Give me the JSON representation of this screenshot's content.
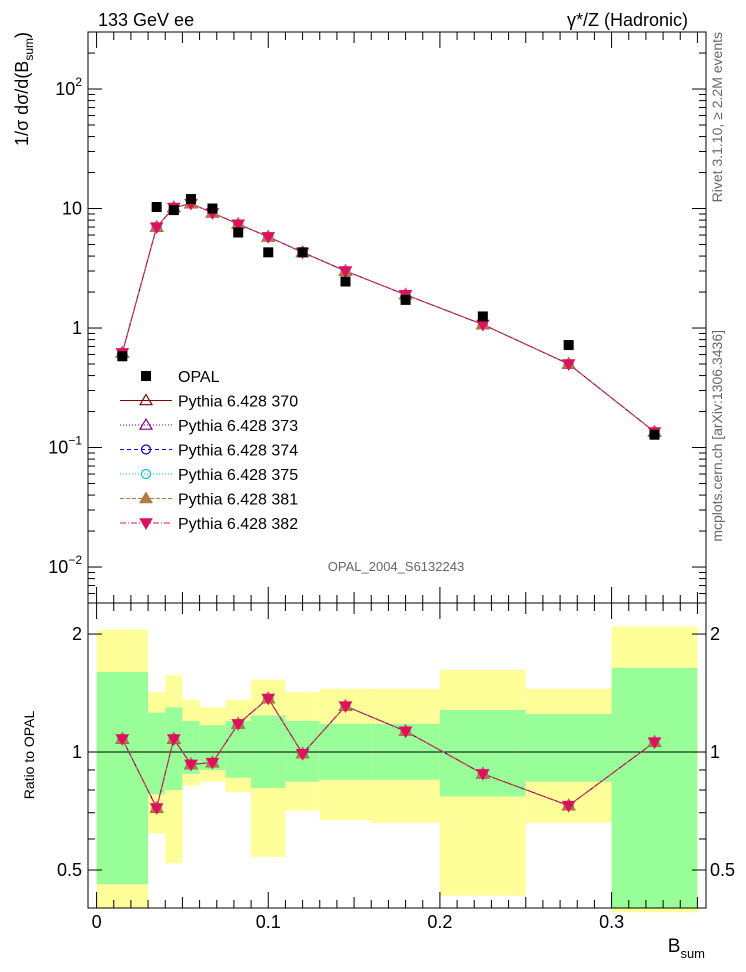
{
  "header": {
    "left": "133 GeV ee",
    "right": "γ*/Z (Hadronic)"
  },
  "side_labels": {
    "rivet": "Rivet 3.1.10, ≥ 2.2M events",
    "mcplots": "mcplots.cern.ch [arXiv:1306.3436]"
  },
  "watermark": "OPAL_2004_S6132243",
  "colors": {
    "opal": "#000000",
    "p370": "#800000",
    "p373": "#800080",
    "p374": "#0000cc",
    "p375": "#00c8c8",
    "p381": "#b07c40",
    "p382": "#e01060",
    "band_inner": "#99ff99",
    "band_outer": "#ffff99"
  },
  "chart_data": [
    {
      "type": "scatter",
      "name": "main",
      "ylabel_prefix": "1/σ dσ/d(B",
      "ylabel_sub": "sum",
      "ylabel_suffix": ")",
      "ylog": true,
      "ylim": [
        0.005,
        300
      ],
      "xlim": [
        -0.005,
        0.355
      ],
      "y_ticks": [
        {
          "value": 0.01,
          "base": "10",
          "exp": "−2"
        },
        {
          "value": 0.1,
          "base": "10",
          "exp": "−1"
        },
        {
          "value": 1,
          "base": "1",
          "exp": ""
        },
        {
          "value": 10,
          "base": "10",
          "exp": ""
        },
        {
          "value": 100,
          "base": "10",
          "exp": "2"
        }
      ],
      "x": [
        0.015,
        0.035,
        0.045,
        0.055,
        0.0675,
        0.0825,
        0.1,
        0.12,
        0.145,
        0.18,
        0.225,
        0.275,
        0.325
      ],
      "opal": [
        0.58,
        10.3,
        9.7,
        12.0,
        10.0,
        6.3,
        4.3,
        4.3,
        2.45,
        1.72,
        1.25,
        0.72,
        0.128
      ],
      "mc": [
        0.62,
        7.0,
        10.2,
        11.0,
        9.2,
        7.4,
        5.8,
        4.3,
        3.0,
        1.9,
        1.07,
        0.5,
        0.135
      ],
      "legend": [
        {
          "label": "OPAL",
          "key": "opal",
          "marker": "square",
          "dash": ""
        },
        {
          "label": "Pythia 6.428 370",
          "key": "p370",
          "marker": "tri-open",
          "dash": ""
        },
        {
          "label": "Pythia 6.428 373",
          "key": "p373",
          "marker": "tri-open",
          "dash": "1,2"
        },
        {
          "label": "Pythia 6.428 374",
          "key": "p374",
          "marker": "circle-open",
          "dash": "4,3"
        },
        {
          "label": "Pythia 6.428 375",
          "key": "p375",
          "marker": "circle-open",
          "dash": "1,2"
        },
        {
          "label": "Pythia 6.428 381",
          "key": "p381",
          "marker": "tri-fill",
          "dash": "4,2"
        },
        {
          "label": "Pythia 6.428 382",
          "key": "p382",
          "marker": "tri-down",
          "dash": "6,2,1,2"
        }
      ]
    },
    {
      "type": "scatter",
      "name": "ratio",
      "ylabel": "Ratio to OPAL",
      "xlabel": "B",
      "xlabel_sub": "sum",
      "ylog": true,
      "ylim": [
        0.4,
        2.4
      ],
      "xlim": [
        -0.005,
        0.355
      ],
      "y_ticks": [
        0.5,
        1,
        2
      ],
      "y_tick_labels": [
        "0.5",
        "1",
        "2"
      ],
      "x_ticks": [
        0,
        0.1,
        0.2,
        0.3
      ],
      "x_tick_labels": [
        "0",
        "0.1",
        "0.2",
        "0.3"
      ],
      "bins": [
        [
          0.0,
          0.03
        ],
        [
          0.03,
          0.04
        ],
        [
          0.04,
          0.05
        ],
        [
          0.05,
          0.06
        ],
        [
          0.06,
          0.075
        ],
        [
          0.075,
          0.09
        ],
        [
          0.09,
          0.11
        ],
        [
          0.11,
          0.13
        ],
        [
          0.13,
          0.16
        ],
        [
          0.16,
          0.2
        ],
        [
          0.2,
          0.25
        ],
        [
          0.25,
          0.3
        ],
        [
          0.3,
          0.35
        ]
      ],
      "band_inner": [
        [
          0.46,
          1.6
        ],
        [
          0.78,
          1.26
        ],
        [
          0.8,
          1.3
        ],
        [
          0.88,
          1.2
        ],
        [
          0.9,
          1.17
        ],
        [
          0.86,
          1.2
        ],
        [
          0.81,
          1.24
        ],
        [
          0.84,
          1.2
        ],
        [
          0.85,
          1.18
        ],
        [
          0.85,
          1.18
        ],
        [
          0.77,
          1.28
        ],
        [
          0.84,
          1.25
        ],
        [
          0.4,
          1.64
        ]
      ],
      "band_outer": [
        [
          0.4,
          2.05
        ],
        [
          0.62,
          1.42
        ],
        [
          0.52,
          1.57
        ],
        [
          0.82,
          1.36
        ],
        [
          0.84,
          1.3
        ],
        [
          0.79,
          1.36
        ],
        [
          0.54,
          1.53
        ],
        [
          0.71,
          1.42
        ],
        [
          0.67,
          1.45
        ],
        [
          0.66,
          1.45
        ],
        [
          0.43,
          1.62
        ],
        [
          0.66,
          1.45
        ],
        [
          0.39,
          2.09
        ]
      ],
      "x": [
        0.015,
        0.035,
        0.045,
        0.055,
        0.0675,
        0.0825,
        0.1,
        0.12,
        0.145,
        0.18,
        0.225,
        0.275,
        0.325
      ],
      "values": [
        1.08,
        0.72,
        1.08,
        0.93,
        0.94,
        1.18,
        1.37,
        0.99,
        1.31,
        1.13,
        0.88,
        0.73,
        1.06
      ]
    }
  ]
}
